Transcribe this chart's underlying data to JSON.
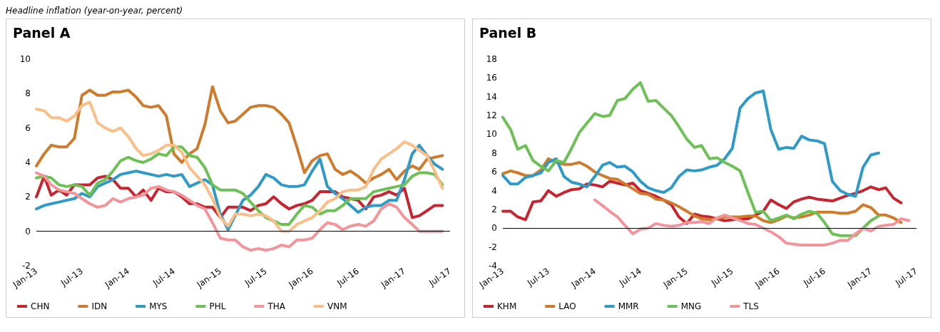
{
  "chart_data": [
    {
      "type": "line",
      "title": "Panel A",
      "subtitle": "Headline inflation (year-on-year, percent)",
      "x": [
        "2013-01",
        "2013-02",
        "2013-03",
        "2013-04",
        "2013-05",
        "2013-06",
        "2013-07",
        "2013-08",
        "2013-09",
        "2013-10",
        "2013-11",
        "2013-12",
        "2014-01",
        "2014-02",
        "2014-03",
        "2014-04",
        "2014-05",
        "2014-06",
        "2014-07",
        "2014-08",
        "2014-09",
        "2014-10",
        "2014-11",
        "2014-12",
        "2015-01",
        "2015-02",
        "2015-03",
        "2015-04",
        "2015-05",
        "2015-06",
        "2015-07",
        "2015-08",
        "2015-09",
        "2015-10",
        "2015-11",
        "2015-12",
        "2016-01",
        "2016-02",
        "2016-03",
        "2016-04",
        "2016-05",
        "2016-06",
        "2016-07",
        "2016-08",
        "2016-09",
        "2016-10",
        "2016-11",
        "2016-12",
        "2017-01",
        "2017-02",
        "2017-03",
        "2017-04",
        "2017-05",
        "2017-06"
      ],
      "series": [
        {
          "name": "CHN",
          "color": "#c8242f",
          "values": [
            2.0,
            3.2,
            2.1,
            2.4,
            2.1,
            2.7,
            2.7,
            2.7,
            3.1,
            3.2,
            3.0,
            2.5,
            2.5,
            2.0,
            2.4,
            1.8,
            2.5,
            2.3,
            2.3,
            2.0,
            1.6,
            1.6,
            1.4,
            1.4,
            0.8,
            1.4,
            1.4,
            1.4,
            1.2,
            1.5,
            1.6,
            2.0,
            1.6,
            1.3,
            1.5,
            1.6,
            1.8,
            2.3,
            2.3,
            2.3,
            2.0,
            1.9,
            1.8,
            1.3,
            2.0,
            2.1,
            2.3,
            2.1,
            2.5,
            0.8,
            0.9,
            1.2,
            1.5,
            1.5
          ]
        },
        {
          "name": "IDN",
          "color": "#d07a2c",
          "values": [
            3.8,
            4.5,
            5.0,
            4.9,
            4.9,
            5.4,
            7.9,
            8.2,
            7.9,
            7.9,
            8.1,
            8.1,
            8.2,
            7.8,
            7.3,
            7.2,
            7.3,
            6.7,
            4.5,
            4.0,
            4.5,
            4.8,
            6.2,
            8.4,
            7.0,
            6.3,
            6.4,
            6.8,
            7.2,
            7.3,
            7.3,
            7.2,
            6.8,
            6.3,
            4.9,
            3.4,
            4.1,
            4.4,
            4.5,
            3.6,
            3.3,
            3.5,
            3.2,
            2.8,
            3.1,
            3.3,
            3.6,
            3.0,
            3.5,
            3.8,
            3.6,
            4.2,
            4.3,
            4.4
          ]
        },
        {
          "name": "MYS",
          "color": "#2e9ac8",
          "values": [
            1.3,
            1.5,
            1.6,
            1.7,
            1.8,
            1.9,
            2.2,
            2.0,
            2.6,
            2.8,
            3.0,
            3.3,
            3.4,
            3.5,
            3.4,
            3.3,
            3.2,
            3.3,
            3.2,
            3.3,
            2.6,
            2.8,
            3.0,
            2.7,
            1.0,
            0.1,
            0.9,
            1.8,
            2.1,
            2.6,
            3.3,
            3.1,
            2.7,
            2.6,
            2.6,
            2.7,
            3.5,
            4.2,
            2.6,
            2.2,
            1.9,
            1.5,
            1.1,
            1.4,
            1.5,
            1.5,
            1.8,
            1.8,
            3.0,
            4.5,
            5.0,
            4.4,
            3.9,
            3.6
          ]
        },
        {
          "name": "PHL",
          "color": "#6cc155",
          "values": [
            3.1,
            3.2,
            3.1,
            2.7,
            2.6,
            2.7,
            2.6,
            2.1,
            2.8,
            3.0,
            3.5,
            4.1,
            4.3,
            4.1,
            4.0,
            4.2,
            4.5,
            4.4,
            4.9,
            4.9,
            4.4,
            4.3,
            3.7,
            2.7,
            2.4,
            2.4,
            2.4,
            2.2,
            1.7,
            1.2,
            0.8,
            0.6,
            0.4,
            0.4,
            1.0,
            1.5,
            1.4,
            1.0,
            1.2,
            1.2,
            1.5,
            1.9,
            1.9,
            1.9,
            2.3,
            2.4,
            2.5,
            2.6,
            2.7,
            3.2,
            3.4,
            3.4,
            3.3,
            2.7
          ]
        },
        {
          "name": "THA",
          "color": "#f4949a",
          "values": [
            3.4,
            3.2,
            2.7,
            2.4,
            2.3,
            2.2,
            1.9,
            1.6,
            1.4,
            1.5,
            1.9,
            1.7,
            1.9,
            2.0,
            2.1,
            2.5,
            2.6,
            2.4,
            2.3,
            2.1,
            1.8,
            1.5,
            1.3,
            0.5,
            -0.4,
            -0.5,
            -0.5,
            -0.9,
            -1.1,
            -1.0,
            -1.1,
            -1.0,
            -0.8,
            -0.9,
            -0.5,
            -0.5,
            -0.4,
            0.1,
            0.5,
            0.4,
            0.1,
            0.3,
            0.4,
            0.3,
            0.6,
            1.3,
            1.6,
            1.4,
            0.8,
            0.4,
            0.0,
            0.0,
            0.0,
            0.0
          ]
        },
        {
          "name": "VNM",
          "color": "#fbbe86",
          "values": [
            7.1,
            7.0,
            6.6,
            6.6,
            6.4,
            6.7,
            7.3,
            7.5,
            6.3,
            6.0,
            5.8,
            6.0,
            5.5,
            4.8,
            4.4,
            4.5,
            4.7,
            5.0,
            5.0,
            4.6,
            3.7,
            3.2,
            2.7,
            1.9,
            0.8,
            0.3,
            1.0,
            1.0,
            0.9,
            1.0,
            0.9,
            0.6,
            0.0,
            0.0,
            0.4,
            0.6,
            0.8,
            1.2,
            1.7,
            1.9,
            2.3,
            2.4,
            2.4,
            2.6,
            3.6,
            4.2,
            4.5,
            4.8,
            5.2,
            5.0,
            4.7,
            4.4,
            3.5,
            2.5
          ]
        }
      ],
      "xlim": [
        "2013-01",
        "2017-07"
      ],
      "xticks": [
        {
          "value": "2013-01",
          "label": "Jan-13"
        },
        {
          "value": "2013-07",
          "label": "Jul-13"
        },
        {
          "value": "2014-01",
          "label": "Jan-14"
        },
        {
          "value": "2014-07",
          "label": "Jul-14"
        },
        {
          "value": "2015-01",
          "label": "Jan-15"
        },
        {
          "value": "2015-07",
          "label": "Jul-15"
        },
        {
          "value": "2016-01",
          "label": "Jan-16"
        },
        {
          "value": "2016-07",
          "label": "Jul-16"
        },
        {
          "value": "2017-01",
          "label": "Jan-17"
        },
        {
          "value": "2017-07",
          "label": "Jul-17"
        }
      ],
      "ylim": [
        -2,
        10
      ],
      "yticks": [
        -2,
        0,
        2,
        4,
        6,
        8,
        10
      ],
      "ref_lines": [
        {
          "axis": "y",
          "value": 0,
          "color": "#000000"
        }
      ],
      "legend": "bottom",
      "grid": false
    },
    {
      "type": "line",
      "title": "Panel B",
      "x": [
        "2013-01",
        "2013-02",
        "2013-03",
        "2013-04",
        "2013-05",
        "2013-06",
        "2013-07",
        "2013-08",
        "2013-09",
        "2013-10",
        "2013-11",
        "2013-12",
        "2014-01",
        "2014-02",
        "2014-03",
        "2014-04",
        "2014-05",
        "2014-06",
        "2014-07",
        "2014-08",
        "2014-09",
        "2014-10",
        "2014-11",
        "2014-12",
        "2015-01",
        "2015-02",
        "2015-03",
        "2015-04",
        "2015-05",
        "2015-06",
        "2015-07",
        "2015-08",
        "2015-09",
        "2015-10",
        "2015-11",
        "2015-12",
        "2016-01",
        "2016-02",
        "2016-03",
        "2016-04",
        "2016-05",
        "2016-06",
        "2016-07",
        "2016-08",
        "2016-09",
        "2016-10",
        "2016-11",
        "2016-12",
        "2017-01",
        "2017-02",
        "2017-03",
        "2017-04",
        "2017-05",
        "2017-06"
      ],
      "series": [
        {
          "name": "KHM",
          "color": "#c8242f",
          "values": [
            1.8,
            1.8,
            1.2,
            0.9,
            2.8,
            2.9,
            4.0,
            3.4,
            3.8,
            4.1,
            4.2,
            4.7,
            4.6,
            4.4,
            5.0,
            4.8,
            4.6,
            4.8,
            4.0,
            3.7,
            3.4,
            3.0,
            2.5,
            1.2,
            0.5,
            1.5,
            1.3,
            1.2,
            1.0,
            0.8,
            0.9,
            1.0,
            1.0,
            1.4,
            1.8,
            3.0,
            2.5,
            2.1,
            2.8,
            3.1,
            3.3,
            3.1,
            3.0,
            2.9,
            3.2,
            3.5,
            3.7,
            4.0,
            4.4,
            4.1,
            4.3,
            3.2,
            2.7,
            null
          ]
        },
        {
          "name": "LAO",
          "color": "#d07a2c",
          "values": [
            5.8,
            6.1,
            5.9,
            5.6,
            5.6,
            6.2,
            7.4,
            7.0,
            6.8,
            6.8,
            7.0,
            6.6,
            6.0,
            5.6,
            5.3,
            5.2,
            4.7,
            4.2,
            3.7,
            3.6,
            3.1,
            3.0,
            2.7,
            2.3,
            1.8,
            1.3,
            1.0,
            0.9,
            1.0,
            1.2,
            1.2,
            1.2,
            1.3,
            1.3,
            0.8,
            0.6,
            0.9,
            1.3,
            1.1,
            1.2,
            1.4,
            1.7,
            1.7,
            1.7,
            1.6,
            1.6,
            1.8,
            2.5,
            2.2,
            1.4,
            1.4,
            1.1,
            0.6,
            null
          ]
        },
        {
          "name": "MMR",
          "color": "#2e9ac8",
          "values": [
            5.6,
            4.7,
            4.7,
            5.4,
            5.6,
            5.9,
            7.0,
            7.4,
            5.5,
            4.9,
            4.7,
            4.4,
            5.5,
            6.7,
            7.0,
            6.5,
            6.6,
            6.0,
            5.0,
            4.3,
            4.0,
            3.8,
            4.3,
            5.5,
            6.2,
            6.1,
            6.2,
            6.5,
            6.7,
            7.4,
            8.5,
            12.8,
            13.8,
            14.4,
            14.6,
            10.5,
            8.4,
            8.6,
            8.5,
            9.8,
            9.4,
            9.3,
            9.0,
            5.0,
            4.0,
            3.6,
            3.4,
            6.5,
            7.8,
            8.0,
            null,
            null,
            null,
            null
          ]
        },
        {
          "name": "MNG",
          "color": "#6cc155",
          "values": [
            11.8,
            10.5,
            8.4,
            8.8,
            7.2,
            6.6,
            6.1,
            7.2,
            7.0,
            8.5,
            10.2,
            11.2,
            12.2,
            11.9,
            12.0,
            13.6,
            13.8,
            14.8,
            15.5,
            13.5,
            13.6,
            12.8,
            12.0,
            10.8,
            9.5,
            8.6,
            8.8,
            7.4,
            7.5,
            7.0,
            6.6,
            6.1,
            3.8,
            1.7,
            1.8,
            0.8,
            1.1,
            1.4,
            1.0,
            1.5,
            1.8,
            1.6,
            0.6,
            -0.6,
            -0.8,
            -0.8,
            -0.8,
            0.0,
            0.8,
            1.3,
            null,
            null,
            null,
            null
          ]
        },
        {
          "name": "TLS",
          "color": "#f4949a",
          "values": [
            null,
            null,
            null,
            null,
            null,
            null,
            null,
            null,
            null,
            null,
            null,
            null,
            3.0,
            2.4,
            1.8,
            1.2,
            0.3,
            -0.6,
            -0.1,
            0.0,
            0.5,
            0.3,
            0.2,
            0.3,
            0.6,
            0.6,
            0.7,
            0.5,
            1.1,
            1.4,
            1.1,
            0.8,
            0.5,
            0.4,
            0.0,
            -0.4,
            -0.9,
            -1.6,
            -1.7,
            -1.8,
            -1.8,
            -1.8,
            -1.8,
            -1.6,
            -1.3,
            -1.3,
            -0.6,
            0.0,
            -0.3,
            0.2,
            0.3,
            0.4,
            1.0,
            0.8
          ]
        }
      ],
      "xlim": [
        "2013-01",
        "2017-07"
      ],
      "xticks": [
        {
          "value": "2013-01",
          "label": "Jan-13"
        },
        {
          "value": "2013-07",
          "label": "Jul-13"
        },
        {
          "value": "2014-01",
          "label": "Jan-14"
        },
        {
          "value": "2014-07",
          "label": "Jul-14"
        },
        {
          "value": "2015-01",
          "label": "Jan-15"
        },
        {
          "value": "2015-07",
          "label": "Jul-15"
        },
        {
          "value": "2016-01",
          "label": "Jan-16"
        },
        {
          "value": "2016-07",
          "label": "Jul-16"
        },
        {
          "value": "2017-01",
          "label": "Jan-17"
        },
        {
          "value": "2017-07",
          "label": "Jul-17"
        }
      ],
      "ylim": [
        -4,
        18
      ],
      "yticks": [
        -4,
        -2,
        0,
        2,
        4,
        6,
        8,
        10,
        12,
        14,
        16,
        18
      ],
      "ref_lines": [
        {
          "axis": "y",
          "value": 0,
          "color": "#000000"
        }
      ],
      "legend": "bottom",
      "grid": false
    }
  ]
}
